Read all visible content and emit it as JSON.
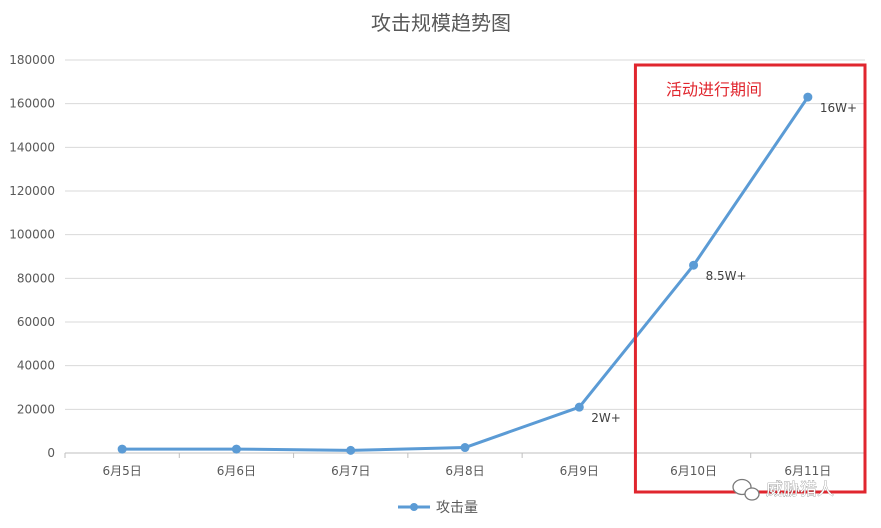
{
  "chart_data": {
    "type": "line",
    "title": "攻击规模趋势图",
    "categories": [
      "6月5日",
      "6月6日",
      "6月7日",
      "6月8日",
      "6月9日",
      "6月10日",
      "6月11日"
    ],
    "series": [
      {
        "name": "攻击量",
        "color": "#5b9bd5",
        "values": [
          1800,
          1800,
          1200,
          2500,
          21000,
          86000,
          163000
        ]
      }
    ],
    "data_labels": [
      "",
      "",
      "",
      "",
      "2W+",
      "8.5W+",
      "16W+"
    ],
    "ylim": [
      0,
      180000
    ],
    "y_ticks": [
      0,
      20000,
      40000,
      60000,
      80000,
      100000,
      120000,
      140000,
      160000,
      180000
    ],
    "grid": true,
    "legend": "bottom",
    "highlight": {
      "label": "活动进行期间",
      "from_category": "6月10日",
      "to_category": "6月11日",
      "color": "#e0262e"
    }
  },
  "watermark": {
    "text": "威胁猎人",
    "icon": "wechat-icon"
  }
}
